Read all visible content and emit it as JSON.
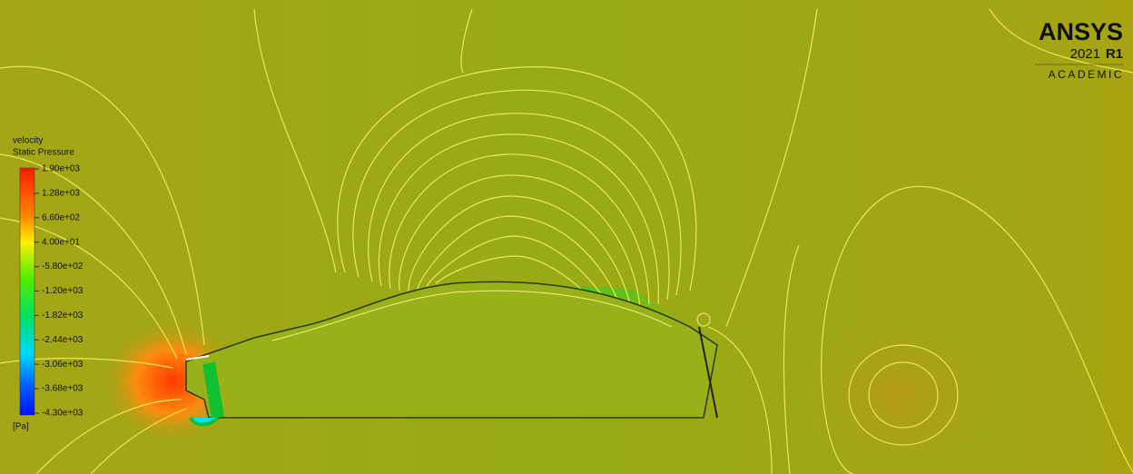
{
  "legend": {
    "title": "velocity",
    "variable": "Static Pressure",
    "labels": [
      "1.90e+03",
      "1.28e+03",
      "6.60e+02",
      "4.00e+01",
      "-5.80e+02",
      "-1.20e+03",
      "-1.82e+03",
      "-2.44e+03",
      "-3.06e+03",
      "-3.68e+03",
      "-4.30e+03"
    ],
    "unit": "[Pa]"
  },
  "logo": {
    "brand": "ANSYS",
    "year": "2021",
    "release": "R1",
    "edition": "ACADEMIC"
  }
}
